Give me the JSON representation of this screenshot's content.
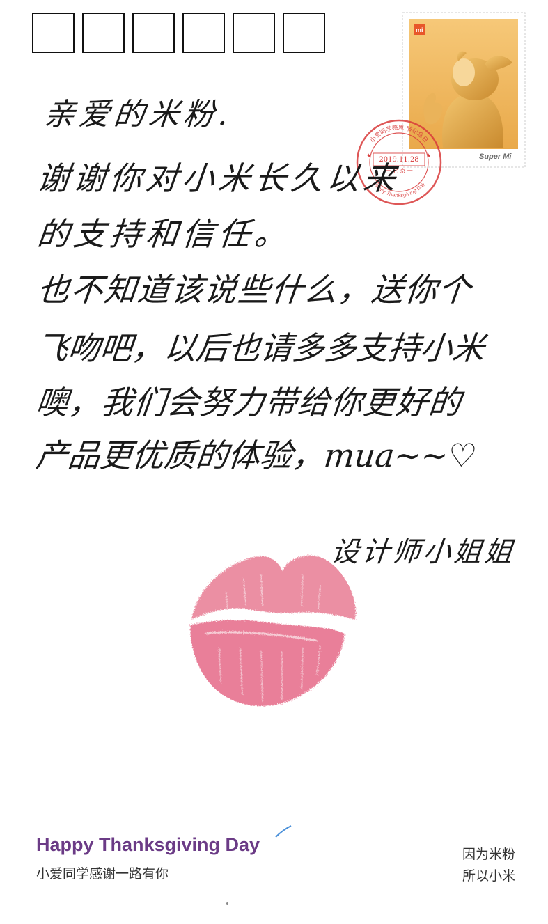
{
  "postcard": {
    "postcode_boxes": [
      "",
      "",
      "",
      "",
      "",
      ""
    ],
    "stamp": {
      "logo_text": "mi",
      "brand_text": "Super Mi",
      "icon": "mi-bunny-mascot-icon"
    },
    "postmark": {
      "ring_text": "小爱同学感恩 节纪念日",
      "date": "2019.11.28",
      "city": "一 北 京 一",
      "ring_text_bottom": "Happy Thanksgiving Day",
      "color": "#d83a3a"
    },
    "message": {
      "greeting": "亲爱的米粉.",
      "lines": [
        "谢谢你对小米长久以来",
        "的支持和信任。",
        "也不知道该说些什么，送你个",
        "飞吻吧，以后也请多多支持小米",
        "噢，我们会努力带给你更好的",
        "产品更优质的体验，mua~~♡"
      ],
      "signature": "设计师小姐姐"
    },
    "lipstick_mark": {
      "icon": "lipstick-kiss-icon",
      "color": "#e0607a"
    },
    "footer": {
      "title": "Happy Thanksgiving Day",
      "subtitle": "小爱同学感谢一路有你",
      "right_line1": "因为米粉",
      "right_line2": "所以小米",
      "title_color": "#6b3b86"
    }
  }
}
